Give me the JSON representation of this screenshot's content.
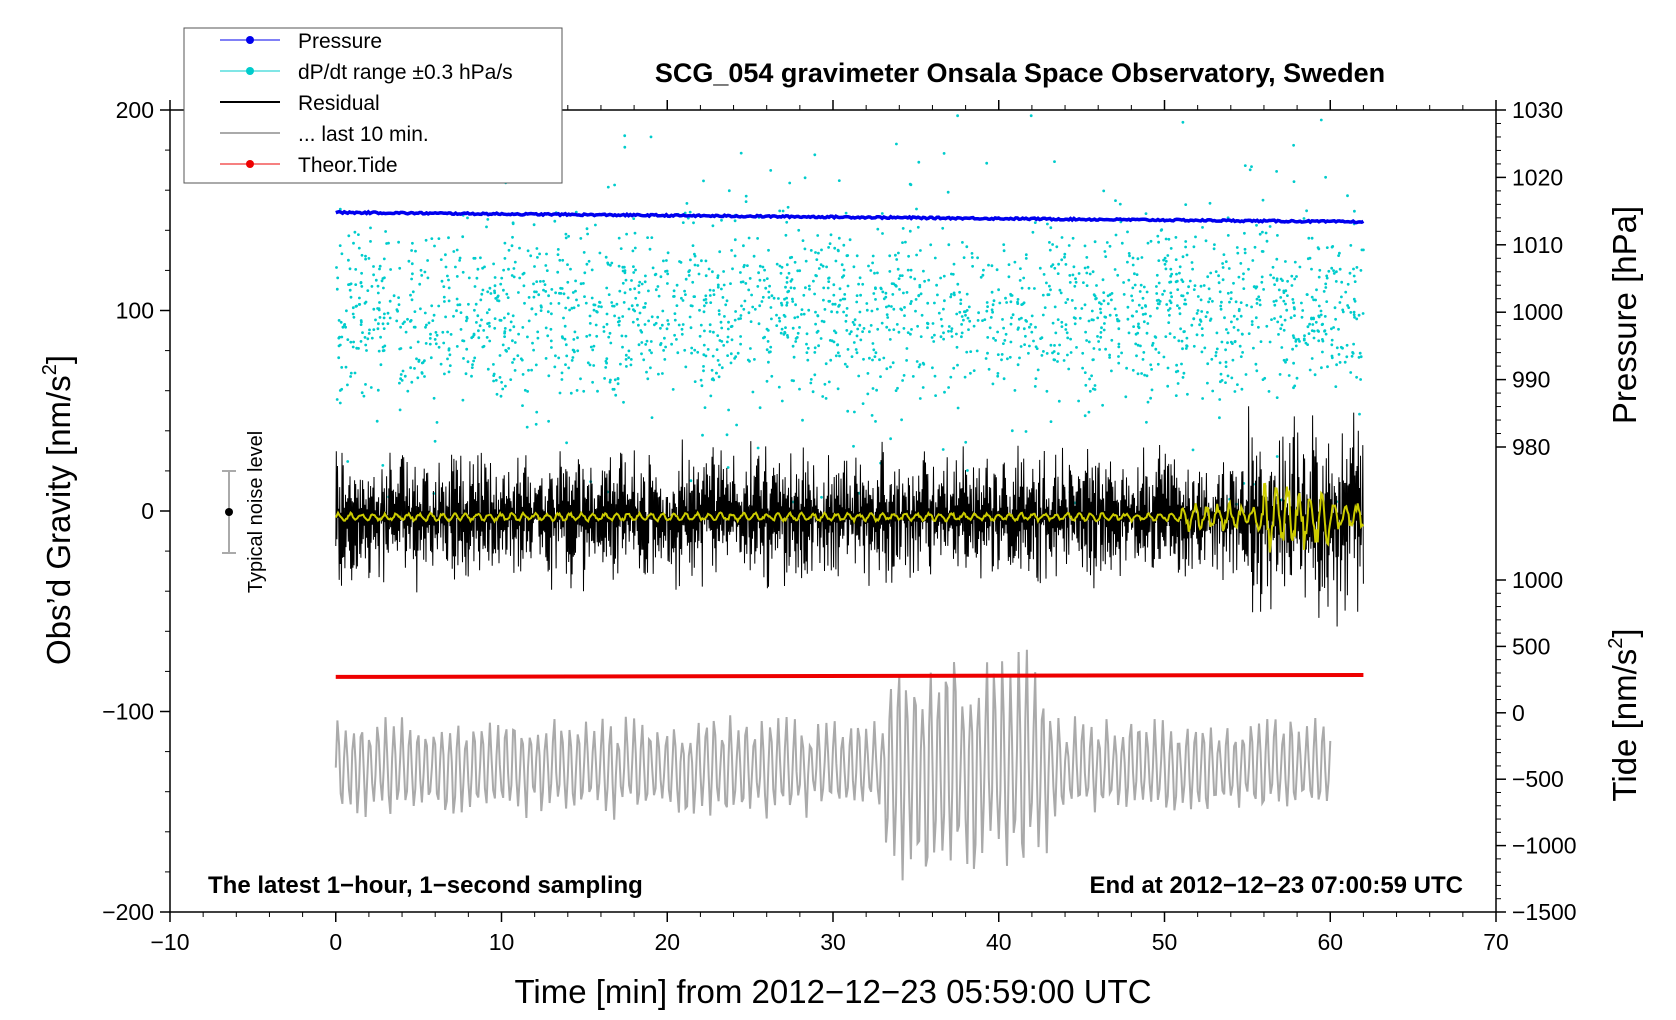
{
  "chart_data": {
    "type": "scatter",
    "title": "SCG_054 gravimeter Onsala Space Observatory, Sweden",
    "xlabel": "Time [min] from 2012−12−23 05:59:00 UTC",
    "ylabel_left_main": "Obs’d Gravity [nm/s",
    "ylabel_left_sup": "2",
    "ylabel_left_end": "]",
    "ylabel_right_pressure": "Pressure [hPa]",
    "ylabel_right_tide_main": "Tide [nm/s",
    "ylabel_right_tide_sup": "2",
    "ylabel_right_tide_end": "]",
    "xlim": [
      -10,
      70
    ],
    "ylim": [
      -200,
      200
    ],
    "x_ticks": [
      -10,
      0,
      10,
      20,
      30,
      40,
      50,
      60,
      70
    ],
    "x_tick_labels": [
      "−10",
      "0",
      "10",
      "20",
      "30",
      "40",
      "50",
      "60",
      "70"
    ],
    "y_ticks": [
      -200,
      -100,
      0,
      100,
      200
    ],
    "y_tick_labels": [
      "−200",
      "−100",
      "0",
      "100",
      "200"
    ],
    "pressure_axis": {
      "ticks": [
        980,
        990,
        1000,
        1010,
        1020,
        1030
      ],
      "tick_labels": [
        "980",
        "990",
        "1000",
        "1010",
        "1020",
        "1030"
      ]
    },
    "tide_axis": {
      "ticks": [
        -1500,
        -1000,
        -500,
        0,
        500,
        1000
      ],
      "tick_labels": [
        "−1500",
        "−1000",
        "−500",
        "0",
        "500",
        "1000"
      ]
    },
    "legend": [
      {
        "label": "Pressure",
        "color": "#0000ee",
        "marker": true
      },
      {
        "label": "dP/dt range ±0.3 hPa/s",
        "color": "#00cccc",
        "marker": true
      },
      {
        "label": "Residual",
        "color": "#000000",
        "marker": false
      },
      {
        "label": "... last 10 min.",
        "color": "#aaaaaa",
        "marker": false
      },
      {
        "label": "Theor.Tide",
        "color": "#ee0000",
        "marker": true
      }
    ],
    "series": [
      {
        "name": "Pressure",
        "axis": "pressure_hPa",
        "color": "#0000ee",
        "start_value": 1014.8,
        "end_value": 1013.4,
        "x_range": [
          0,
          62
        ]
      },
      {
        "name": "dP/dt range ±0.3 hPa/s",
        "axis": "gravity_nm_s2",
        "color": "#00cccc",
        "center": 100,
        "spread": 100,
        "x_range": [
          0,
          62
        ]
      },
      {
        "name": "Residual",
        "axis": "gravity_nm_s2",
        "color": "#000000",
        "center": -3,
        "amplitude": 25,
        "x_range": [
          0,
          62
        ]
      },
      {
        "name": "Smoothed residual",
        "axis": "gravity_nm_s2",
        "color": "#cccc00",
        "center": -3,
        "x_range": [
          0,
          62
        ]
      },
      {
        "name": "... last 10 min.",
        "axis": "gravity_nm_s2",
        "color": "#aaaaaa",
        "center": -128,
        "amplitude": 40,
        "x_range": [
          0,
          60
        ]
      },
      {
        "name": "Theor.Tide",
        "axis": "tide_nm_s2",
        "color": "#ee0000",
        "start_value": 270,
        "end_value": 285,
        "x_range": [
          0,
          62
        ]
      }
    ],
    "noise_level": {
      "label": "Typical noise level",
      "x": -7,
      "center": 0,
      "half_range": 20
    },
    "annotations": {
      "bottom_left": "The latest 1−hour, 1−second sampling",
      "bottom_right": "End at 2012−12−23 07:00:59 UTC"
    }
  }
}
